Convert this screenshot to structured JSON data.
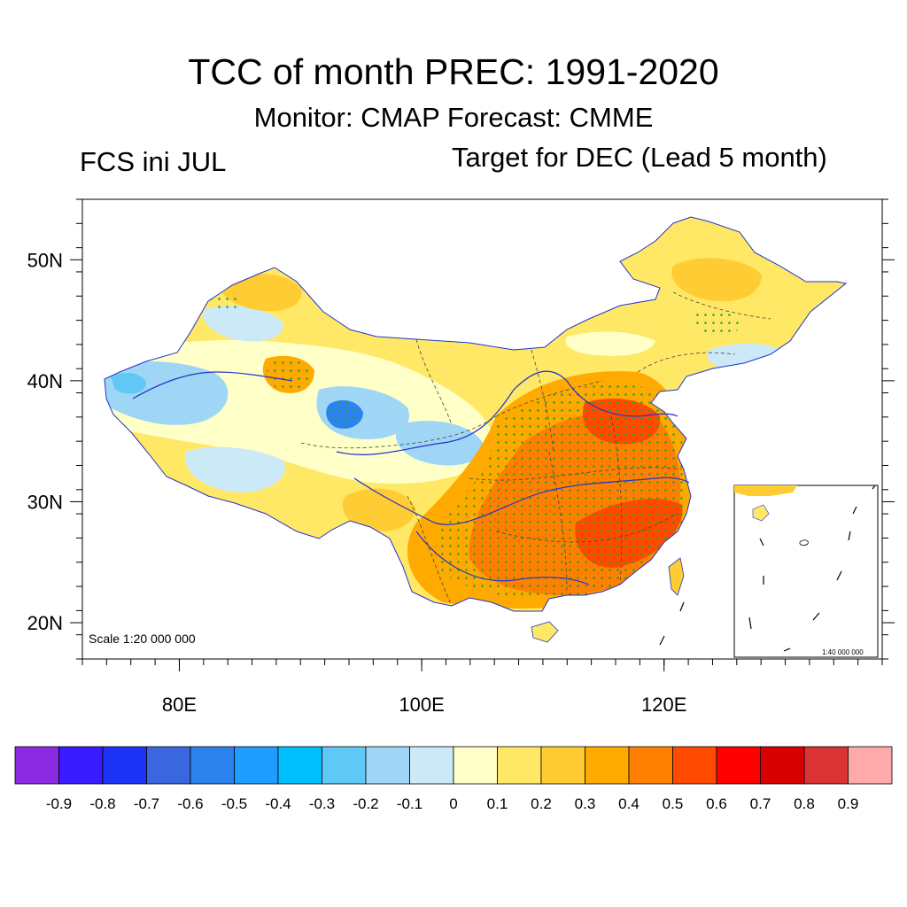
{
  "title": "TCC of month PREC: 1991-2020",
  "subtitle": "Monitor: CMAP   Forecast: CMME",
  "left_label": "FCS ini JUL",
  "right_label": "Target for DEC (Lead 5 month)",
  "scale_label": "Scale 1:20 000 000",
  "inset_scale_label": "1:40 000 000",
  "map": {
    "lon_range": [
      72,
      138
    ],
    "lat_range": [
      17,
      55
    ],
    "lat_ticks": [
      {
        "value": 20,
        "label": "20N"
      },
      {
        "value": 30,
        "label": "30N"
      },
      {
        "value": 40,
        "label": "40N"
      },
      {
        "value": 50,
        "label": "50N"
      }
    ],
    "lon_ticks": [
      {
        "value": 80,
        "label": "80E"
      },
      {
        "value": 100,
        "label": "100E"
      },
      {
        "value": 120,
        "label": "120E"
      }
    ],
    "significance_dot_color": "#2ca02c",
    "river_color": "#2233cc"
  },
  "colorbar": {
    "colors": [
      "#8a2be2",
      "#3b1bff",
      "#1c33f5",
      "#3a66e0",
      "#2d83ee",
      "#1e9cff",
      "#00bfff",
      "#5fc8f5",
      "#a0d6f5",
      "#cce9f8",
      "#ffffc8",
      "#ffe866",
      "#ffcc33",
      "#ffaa00",
      "#ff8000",
      "#ff4a00",
      "#ff0000",
      "#d90000",
      "#d93333",
      "#ffaaaa"
    ],
    "labels": [
      "-0.9",
      "-0.8",
      "-0.7",
      "-0.6",
      "-0.5",
      "-0.4",
      "-0.3",
      "-0.2",
      "-0.1",
      "0",
      "0.1",
      "0.2",
      "0.3",
      "0.4",
      "0.5",
      "0.6",
      "0.7",
      "0.8",
      "0.9"
    ]
  }
}
